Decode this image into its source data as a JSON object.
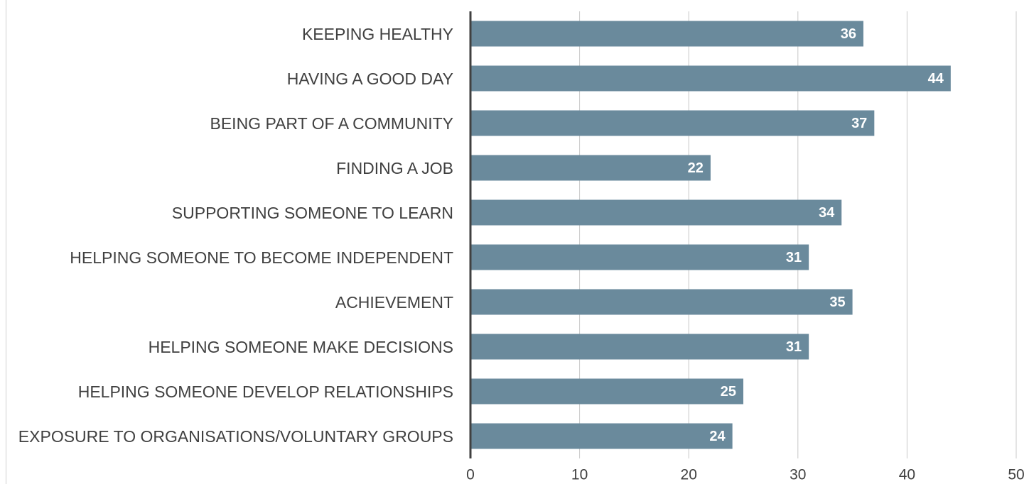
{
  "chart_data": {
    "type": "barh",
    "categories": [
      "KEEPING HEALTHY",
      "HAVING A GOOD DAY",
      "BEING PART OF A COMMUNITY",
      "FINDING A JOB",
      "SUPPORTING SOMEONE TO LEARN",
      "HELPING SOMEONE TO BECOME INDEPENDENT",
      "ACHIEVEMENT",
      "HELPING SOMEONE MAKE DECISIONS",
      "HELPING SOMEONE DEVELOP RELATIONSHIPS",
      "EXPOSURE TO ORGANISATIONS/VOLUNTARY GROUPS"
    ],
    "values": [
      36,
      44,
      37,
      22,
      34,
      31,
      35,
      31,
      25,
      24
    ],
    "color": "#6a8a9c",
    "xlim": [
      0,
      50
    ],
    "xticks": [
      0,
      10,
      20,
      30,
      40,
      50
    ],
    "grid": true
  }
}
